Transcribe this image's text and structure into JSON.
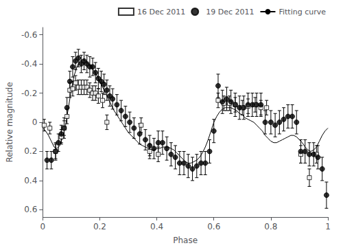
{
  "chart_data": {
    "type": "scatter",
    "xlabel": "Phase",
    "ylabel": "Relative magnitude",
    "xlim": [
      0,
      1
    ],
    "ylim": [
      0.65,
      -0.65
    ],
    "xticks": [
      0,
      0.2,
      0.4,
      0.6,
      0.8,
      1.0
    ],
    "yticks": [
      -0.6,
      -0.4,
      -0.2,
      0.0,
      0.2,
      0.4,
      0.6
    ],
    "grid": false,
    "legend": "upper right",
    "series": [
      {
        "name": "16 Dec 2011",
        "type": "scatter",
        "marker": "square",
        "color": "#000000",
        "x": [
          0.005,
          0.025,
          0.045,
          0.065,
          0.075,
          0.085,
          0.095,
          0.105,
          0.115,
          0.125,
          0.135,
          0.145,
          0.155,
          0.165,
          0.175,
          0.185,
          0.195,
          0.21,
          0.225,
          0.345,
          0.375,
          0.405,
          0.615,
          0.635,
          0.655,
          0.675,
          0.7,
          0.72,
          0.745,
          0.765,
          0.785,
          0.905,
          0.935,
          0.96
        ],
        "values": [
          0.02,
          0.04,
          0.2,
          0.1,
          0.04,
          -0.04,
          -0.22,
          -0.23,
          -0.27,
          -0.24,
          -0.24,
          -0.24,
          -0.24,
          -0.22,
          -0.2,
          -0.2,
          -0.18,
          -0.15,
          0.0,
          0.02,
          0.2,
          0.22,
          -0.15,
          -0.13,
          -0.13,
          -0.12,
          -0.1,
          -0.11,
          -0.12,
          -0.1,
          -0.1,
          0.22,
          0.38,
          0.22
        ],
        "yerr": [
          0.04,
          0.04,
          0.05,
          0.05,
          0.05,
          0.05,
          0.05,
          0.05,
          0.05,
          0.05,
          0.05,
          0.05,
          0.05,
          0.05,
          0.05,
          0.05,
          0.05,
          0.05,
          0.05,
          0.05,
          0.05,
          0.05,
          0.05,
          0.05,
          0.05,
          0.05,
          0.05,
          0.05,
          0.05,
          0.05,
          0.05,
          0.06,
          0.06,
          0.06
        ]
      },
      {
        "name": "19 Dec 2011",
        "type": "scatter",
        "marker": "circle",
        "color": "#000000",
        "x": [
          0.015,
          0.03,
          0.045,
          0.055,
          0.065,
          0.075,
          0.085,
          0.095,
          0.105,
          0.115,
          0.125,
          0.135,
          0.145,
          0.155,
          0.165,
          0.175,
          0.185,
          0.195,
          0.205,
          0.215,
          0.225,
          0.235,
          0.245,
          0.26,
          0.275,
          0.29,
          0.305,
          0.32,
          0.34,
          0.36,
          0.375,
          0.39,
          0.405,
          0.42,
          0.435,
          0.45,
          0.465,
          0.48,
          0.495,
          0.51,
          0.525,
          0.54,
          0.555,
          0.57,
          0.585,
          0.6,
          0.615,
          0.63,
          0.645,
          0.66,
          0.675,
          0.69,
          0.705,
          0.72,
          0.735,
          0.75,
          0.765,
          0.78,
          0.8,
          0.815,
          0.83,
          0.845,
          0.86,
          0.875,
          0.89,
          0.905,
          0.92,
          0.935,
          0.95,
          0.965,
          0.98,
          0.995
        ],
        "values": [
          0.26,
          0.26,
          0.2,
          0.14,
          0.08,
          0.04,
          -0.1,
          -0.28,
          -0.38,
          -0.42,
          -0.44,
          -0.4,
          -0.42,
          -0.4,
          -0.38,
          -0.38,
          -0.34,
          -0.3,
          -0.28,
          -0.26,
          -0.22,
          -0.18,
          -0.16,
          -0.12,
          -0.08,
          -0.04,
          0.0,
          0.04,
          0.08,
          0.12,
          0.16,
          0.18,
          0.14,
          0.14,
          0.18,
          0.22,
          0.24,
          0.28,
          0.28,
          0.3,
          0.32,
          0.3,
          0.28,
          0.28,
          0.2,
          0.06,
          -0.25,
          -0.14,
          -0.16,
          -0.14,
          -0.12,
          -0.1,
          -0.1,
          -0.12,
          -0.12,
          -0.12,
          -0.12,
          0.0,
          0.0,
          0.02,
          0.0,
          -0.02,
          -0.04,
          -0.04,
          0.0,
          0.2,
          0.2,
          0.22,
          0.22,
          0.24,
          0.32,
          0.5
        ],
        "yerr": [
          0.06,
          0.06,
          0.06,
          0.06,
          0.06,
          0.07,
          0.07,
          0.07,
          0.07,
          0.06,
          0.06,
          0.06,
          0.06,
          0.06,
          0.07,
          0.06,
          0.07,
          0.07,
          0.07,
          0.07,
          0.07,
          0.07,
          0.07,
          0.07,
          0.07,
          0.07,
          0.07,
          0.07,
          0.07,
          0.07,
          0.07,
          0.07,
          0.08,
          0.08,
          0.08,
          0.08,
          0.08,
          0.08,
          0.08,
          0.08,
          0.08,
          0.08,
          0.08,
          0.08,
          0.08,
          0.08,
          0.08,
          0.08,
          0.08,
          0.08,
          0.08,
          0.08,
          0.08,
          0.08,
          0.08,
          0.08,
          0.08,
          0.08,
          0.08,
          0.08,
          0.08,
          0.08,
          0.08,
          0.08,
          0.08,
          0.08,
          0.08,
          0.08,
          0.08,
          0.08,
          0.08,
          0.09
        ]
      },
      {
        "name": "Fitting curve",
        "type": "line",
        "color": "#000000",
        "x": [
          0.0,
          0.01,
          0.02,
          0.03,
          0.04,
          0.05,
          0.06,
          0.07,
          0.08,
          0.09,
          0.1,
          0.11,
          0.12,
          0.13,
          0.14,
          0.15,
          0.16,
          0.17,
          0.18,
          0.19,
          0.2,
          0.21,
          0.22,
          0.23,
          0.24,
          0.25,
          0.26,
          0.27,
          0.28,
          0.29,
          0.3,
          0.31,
          0.32,
          0.33,
          0.34,
          0.35,
          0.36,
          0.37,
          0.38,
          0.39,
          0.4,
          0.41,
          0.42,
          0.43,
          0.44,
          0.45,
          0.46,
          0.47,
          0.48,
          0.49,
          0.5,
          0.51,
          0.52,
          0.53,
          0.54,
          0.55,
          0.56,
          0.57,
          0.58,
          0.59,
          0.6,
          0.61,
          0.62,
          0.63,
          0.64,
          0.65,
          0.66,
          0.67,
          0.68,
          0.69,
          0.7,
          0.71,
          0.72,
          0.73,
          0.74,
          0.75,
          0.76,
          0.77,
          0.78,
          0.79,
          0.8,
          0.81,
          0.82,
          0.83,
          0.84,
          0.85,
          0.86,
          0.87,
          0.88,
          0.89,
          0.9,
          0.91,
          0.92,
          0.93,
          0.94,
          0.95,
          0.96,
          0.97,
          0.98,
          0.99,
          1.0
        ],
        "values": [
          0.04,
          0.06,
          0.09,
          0.13,
          0.17,
          0.18,
          0.16,
          0.1,
          0.02,
          -0.1,
          -0.22,
          -0.32,
          -0.38,
          -0.42,
          -0.43,
          -0.42,
          -0.4,
          -0.38,
          -0.35,
          -0.32,
          -0.28,
          -0.24,
          -0.2,
          -0.16,
          -0.12,
          -0.08,
          -0.05,
          -0.02,
          0.01,
          0.04,
          0.07,
          0.09,
          0.11,
          0.13,
          0.15,
          0.16,
          0.17,
          0.18,
          0.19,
          0.19,
          0.18,
          0.18,
          0.17,
          0.17,
          0.17,
          0.18,
          0.19,
          0.21,
          0.23,
          0.25,
          0.27,
          0.28,
          0.28,
          0.27,
          0.26,
          0.24,
          0.21,
          0.17,
          0.12,
          0.06,
          0.0,
          -0.04,
          -0.07,
          -0.09,
          -0.1,
          -0.1,
          -0.1,
          -0.09,
          -0.08,
          -0.06,
          -0.05,
          -0.03,
          -0.02,
          -0.01,
          0.0,
          0.02,
          0.04,
          0.06,
          0.09,
          0.11,
          0.13,
          0.14,
          0.14,
          0.13,
          0.12,
          0.11,
          0.1,
          0.09,
          0.09,
          0.1,
          0.12,
          0.14,
          0.17,
          0.19,
          0.2,
          0.19,
          0.17,
          0.13,
          0.09,
          0.06,
          0.04
        ]
      }
    ]
  }
}
